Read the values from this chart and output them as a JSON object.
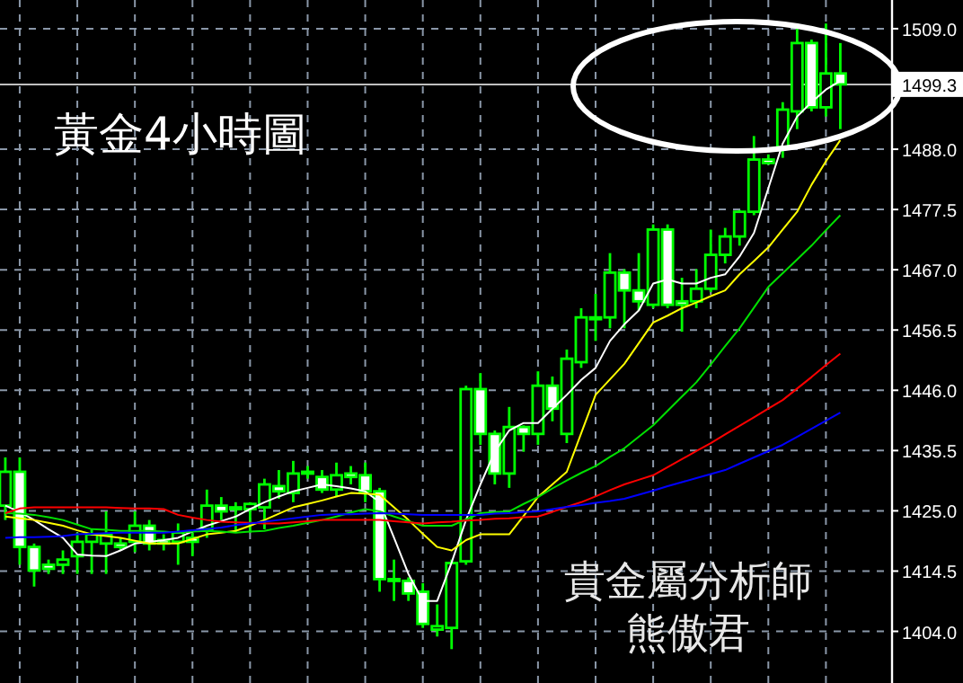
{
  "chart_data": {
    "type": "candlestick",
    "title": "黃金4小時圖",
    "annotations": [
      "貴金屬分析師",
      "熊傲君"
    ],
    "color": "#00ff00",
    "categories": [
      null,
      null,
      null,
      null,
      null,
      null,
      null,
      null,
      null,
      null,
      null,
      null,
      null,
      null,
      null,
      null,
      null,
      null,
      null,
      null,
      null,
      null,
      null,
      null,
      null,
      null,
      null,
      null,
      null,
      null,
      null,
      null,
      null,
      null,
      null,
      null,
      null,
      null,
      null,
      null,
      null,
      null,
      null,
      null,
      null,
      null,
      null,
      null,
      null,
      null,
      null,
      null,
      null,
      null,
      null,
      null,
      null,
      null,
      null
    ],
    "ohlc": [
      [
        1425.9,
        1434.3,
        1423.4,
        1431.8
      ],
      [
        1431.8,
        1434.3,
        1415.6,
        1418.7
      ],
      [
        1418.7,
        1419.3,
        1411.8,
        1414.6
      ],
      [
        1415.6,
        1416.5,
        1414,
        1414.9
      ],
      [
        1415.6,
        1418.1,
        1414,
        1416.5
      ],
      [
        1417.1,
        1421.2,
        1414,
        1419.6
      ],
      [
        1419.6,
        1421.8,
        1414,
        1420.9
      ],
      [
        1419.3,
        1424.9,
        1414,
        1420.9
      ],
      [
        1419.3,
        1420.3,
        1418.1,
        1418.7
      ],
      [
        1419.6,
        1424.9,
        1417.8,
        1422.4
      ],
      [
        1422.4,
        1423.4,
        1418.1,
        1419.3
      ],
      [
        1419.9,
        1420.9,
        1418.1,
        1419.3
      ],
      [
        1419.6,
        1422.8,
        1415.6,
        1421.2
      ],
      [
        1420.3,
        1421.2,
        1417.1,
        1419.6
      ],
      [
        1421.8,
        1428.7,
        1420.3,
        1425.9
      ],
      [
        1425.9,
        1427.4,
        1423.4,
        1424.9
      ],
      [
        1425.6,
        1426.5,
        1421.2,
        1425.3
      ],
      [
        1425.3,
        1426.5,
        1421.2,
        1426.2
      ],
      [
        1425.6,
        1430.6,
        1421.8,
        1429.6
      ],
      [
        1429.3,
        1432.1,
        1427.1,
        1428.4
      ],
      [
        1428.1,
        1433.7,
        1426.5,
        1431.5
      ],
      [
        1431.5,
        1432.8,
        1430.6,
        1431.8
      ],
      [
        1430.9,
        1432.1,
        1428.1,
        1428.7
      ],
      [
        1428.7,
        1433.4,
        1427.4,
        1431.2
      ],
      [
        1431.5,
        1432.8,
        1429.6,
        1430.9
      ],
      [
        1431.2,
        1433.4,
        1426.5,
        1428.4
      ],
      [
        1428.4,
        1429,
        1410.9,
        1413.1
      ],
      [
        1413.1,
        1416.5,
        1409.3,
        1412.8
      ],
      [
        1412.8,
        1413.4,
        1409.3,
        1410.6
      ],
      [
        1410.9,
        1412.4,
        1404.6,
        1405.3
      ],
      [
        1404.3,
        1408.7,
        1403.1,
        1404.9
      ],
      [
        1404.6,
        1416.5,
        1400.9,
        1415.9
      ],
      [
        1416.2,
        1446.8,
        1415.6,
        1446.2
      ],
      [
        1446.2,
        1449,
        1436.5,
        1438.4
      ],
      [
        1438.4,
        1439,
        1429.6,
        1431.5
      ],
      [
        1431.5,
        1443.1,
        1429,
        1439.6
      ],
      [
        1439.6,
        1439.9,
        1435.3,
        1438.4
      ],
      [
        1438.4,
        1449.3,
        1436.5,
        1446.8
      ],
      [
        1446.8,
        1448.4,
        1440.6,
        1442.8
      ],
      [
        1438.4,
        1453.1,
        1436.8,
        1451.5
      ],
      [
        1450.9,
        1460.3,
        1449.9,
        1458.7
      ],
      [
        1458.7,
        1462.8,
        1454.6,
        1458.4
      ],
      [
        1458.7,
        1469.9,
        1456.8,
        1466.5
      ],
      [
        1466.5,
        1467.1,
        1456.8,
        1463.4
      ],
      [
        1463.4,
        1469.9,
        1459.9,
        1461.5
      ],
      [
        1460.9,
        1474.9,
        1460.3,
        1474
      ],
      [
        1474,
        1474.9,
        1460.3,
        1460.9
      ],
      [
        1461.5,
        1465.6,
        1456.2,
        1460.9
      ],
      [
        1461.5,
        1467.1,
        1460.3,
        1463.7
      ],
      [
        1463.7,
        1474,
        1463.1,
        1469.6
      ],
      [
        1469.6,
        1474.3,
        1468.1,
        1472.8
      ],
      [
        1472.8,
        1477.4,
        1471.2,
        1477.1
      ],
      [
        1477.1,
        1490.3,
        1476.5,
        1486.2
      ],
      [
        1486.2,
        1487.1,
        1485.3,
        1485.6
      ],
      [
        1488.4,
        1496.2,
        1486.5,
        1494.9
      ],
      [
        1494.6,
        1509.9,
        1491.5,
        1506.5
      ],
      [
        1506.5,
        1507.1,
        1494.6,
        1495.3
      ],
      [
        1495.3,
        1509.9,
        1493.7,
        1501.2
      ],
      [
        1501.2,
        1506.5,
        1491.5,
        1499.3
      ]
    ],
    "series": [
      {
        "type": "line",
        "color": "#ffffff",
        "values": [
          1425.9,
          1424.8,
          1423.4,
          1421.8,
          1420.3,
          1417.4,
          1417.2,
          1417.1,
          1418.1,
          1419.3,
          1419.6,
          1419.9,
          1420.3,
          1421.4,
          1422.4,
          1423.2,
          1424,
          1425.3,
          1426.5,
          1427.5,
          1428.4,
          1429,
          1429.6,
          1429.3,
          1428.9,
          1428.4,
          1426.5,
          1420.3,
          1414,
          1409.3,
          1409.3,
          1416,
          1423.4,
          1429.6,
          1435.3,
          1439,
          1440.3,
          1440.3,
          1442.8,
          1445.2,
          1447.8,
          1449.9,
          1454.6,
          1457.5,
          1459.9,
          1464.6,
          1465.3,
          1464.6,
          1464.6,
          1465.6,
          1466.2,
          1469.3,
          1473.4,
          1481.2,
          1489,
          1493.7,
          1496.2,
          1498.4,
          1499.9
        ]
      },
      {
        "type": "line",
        "color": "#ffff00",
        "values": [
          1424,
          1423.7,
          1423.4,
          1422.9,
          1422.4,
          1421.6,
          1420.9,
          1420.6,
          1420.3,
          1419.8,
          1419.3,
          1419.3,
          1419.3,
          1420.1,
          1420.9,
          1421.2,
          1421.5,
          1422.4,
          1423.4,
          1424.5,
          1425.6,
          1426.2,
          1426.8,
          1427.5,
          1428.1,
          1428,
          1427.8,
          1425.6,
          1423.4,
          1421,
          1418.7,
          1418.1,
          1419.9,
          1420.9,
          1420.9,
          1420.9,
          1424.1,
          1427.4,
          1429.6,
          1431.8,
          1438.5,
          1445.2,
          1447.9,
          1450.6,
          1454.2,
          1457.8,
          1459,
          1460.3,
          1461.3,
          1462.4,
          1463.4,
          1466.2,
          1468.5,
          1470.9,
          1474,
          1477.1,
          1481.8,
          1485.9,
          1489.6
        ]
      },
      {
        "type": "line",
        "color": "#00e000",
        "values": [
          1424.6,
          1424.5,
          1424.3,
          1423.9,
          1423.4,
          1422.6,
          1421.8,
          1421.7,
          1421.5,
          1421.5,
          1421.5,
          1421.4,
          1421.2,
          1421.4,
          1421.5,
          1421.4,
          1421.2,
          1421.4,
          1421.5,
          1422,
          1422.4,
          1422.9,
          1423.4,
          1424,
          1424.7,
          1425.3,
          1424.9,
          1424,
          1423.2,
          1422.4,
          1422.4,
          1422.4,
          1423.5,
          1424.6,
          1424.8,
          1424.9,
          1426.2,
          1427.4,
          1428.9,
          1430.3,
          1431.6,
          1432.8,
          1434.4,
          1435.9,
          1437.9,
          1439.9,
          1442.4,
          1444.9,
          1447.4,
          1450.5,
          1453.7,
          1456.8,
          1460.4,
          1464,
          1466.4,
          1468.8,
          1471.2,
          1473.9,
          1476.5
        ]
      },
      {
        "type": "line",
        "color": "#ff0000",
        "values": [
          1424.6,
          1425.4,
          1425.6,
          1425.6,
          1425.6,
          1425.6,
          1425.6,
          1425.6,
          1425.5,
          1425.4,
          1425.4,
          1425.3,
          1424.3,
          1423.8,
          1423.4,
          1423.1,
          1423,
          1422.9,
          1422.8,
          1422.8,
          1423,
          1423.2,
          1423.4,
          1423.4,
          1423.4,
          1423.4,
          1423.4,
          1423.2,
          1423,
          1422.8,
          1423,
          1423.1,
          1423.3,
          1423.4,
          1423.6,
          1423.7,
          1423.9,
          1424,
          1424.8,
          1425.7,
          1426.5,
          1427.5,
          1428.6,
          1429.6,
          1430.4,
          1431.2,
          1432.6,
          1434,
          1435.4,
          1436.8,
          1438.3,
          1439.8,
          1441.3,
          1442.8,
          1444.3,
          1446.3,
          1448.3,
          1450.4,
          1452.4
        ]
      },
      {
        "type": "line",
        "color": "#0000ff",
        "values": [
          1420.3,
          1420.4,
          1420.4,
          1420.5,
          1420.6,
          1420.9,
          1421,
          1421.1,
          1421.2,
          1421.2,
          1421.2,
          1421.2,
          1421.4,
          1421.6,
          1421.8,
          1422.1,
          1422.5,
          1422.8,
          1423.1,
          1423.4,
          1423.7,
          1424,
          1424.3,
          1424.4,
          1424.4,
          1424.5,
          1424.6,
          1424.5,
          1424.4,
          1424.3,
          1424.3,
          1424.3,
          1424.3,
          1424.3,
          1424.5,
          1424.6,
          1424.8,
          1424.9,
          1425.3,
          1425.7,
          1426,
          1426.4,
          1426.7,
          1427.1,
          1427.8,
          1428.5,
          1429.3,
          1430,
          1430.7,
          1431.4,
          1432.1,
          1433.2,
          1434.3,
          1435.4,
          1436.5,
          1437.9,
          1439.3,
          1440.7,
          1442.1
        ]
      }
    ],
    "ylim": [
      1395,
      1514
    ],
    "yticks": [
      {
        "value": 1404,
        "label": "1404.0"
      },
      {
        "value": 1414.5,
        "label": "1414.5"
      },
      {
        "value": 1425,
        "label": "1425.0"
      },
      {
        "value": 1435.5,
        "label": "1435.5"
      },
      {
        "value": 1446,
        "label": "1446.0"
      },
      {
        "value": 1456.5,
        "label": "1456.5"
      },
      {
        "value": 1467,
        "label": "1467.0"
      },
      {
        "value": 1477.5,
        "label": "1477.5"
      },
      {
        "value": 1488,
        "label": "1488.0"
      },
      {
        "value": 1509,
        "label": "1509.0"
      }
    ],
    "ref_lines": [
      {
        "axis": "y",
        "value": 1499.3,
        "label": "1499.3",
        "color": "#c0c0c0"
      }
    ],
    "grid": true,
    "tick_labels": "y"
  }
}
